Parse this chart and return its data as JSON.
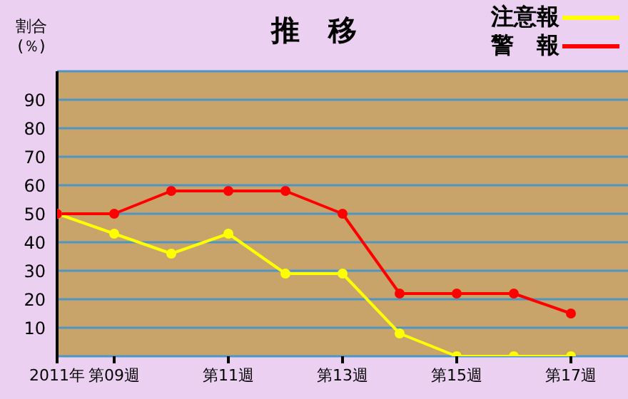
{
  "chart_data": {
    "type": "line",
    "title": "推　移",
    "ylabel": "割合\n(％)",
    "categories": [
      "2011年",
      "第09週",
      null,
      "第11週",
      null,
      "第13週",
      null,
      "第15週",
      null,
      "第17週",
      null
    ],
    "series": [
      {
        "name": "注意報",
        "color": "#ffff00",
        "values": [
          50,
          43,
          36,
          43,
          29,
          29,
          8,
          0,
          0,
          0,
          null
        ]
      },
      {
        "name": "警　報",
        "color": "#ff0000",
        "values": [
          50,
          50,
          58,
          58,
          58,
          50,
          22,
          22,
          22,
          15,
          null
        ]
      }
    ],
    "ylim": [
      0,
      100
    ],
    "yticks": [
      10,
      20,
      30,
      40,
      50,
      60,
      70,
      80,
      90
    ],
    "grid": "y",
    "legend": "top right",
    "marker": "circle",
    "line_style": "solid"
  }
}
